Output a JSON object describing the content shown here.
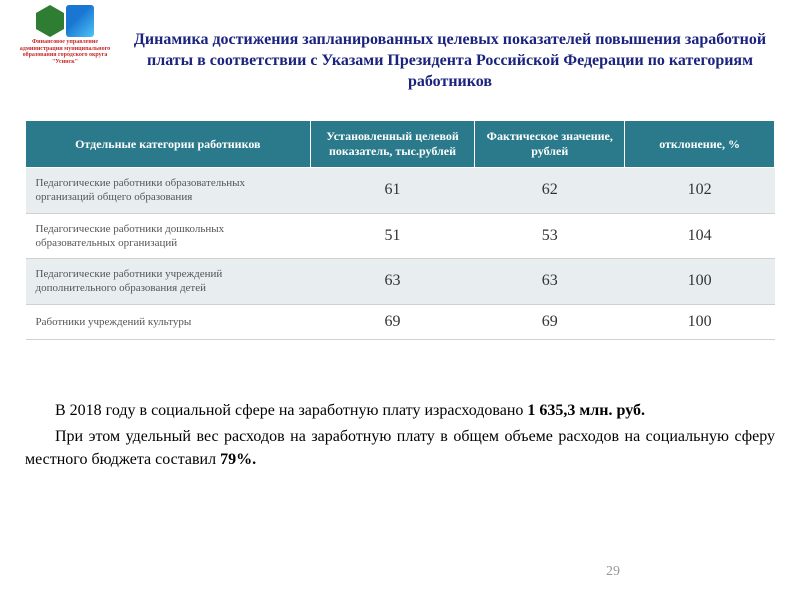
{
  "logo": {
    "caption": "Финансовое управление администрации муниципального образования городского округа \"Усинск\""
  },
  "title": "Динамика достижения запланированных целевых показателей повышения заработной платы в соответствии с Указами Президента Российской Федерации по категориям работников",
  "table": {
    "headers": {
      "col1": "Отдельные категории работников",
      "col2": "Установленный целевой показатель, тыс.рублей",
      "col3": "Фактическое значение, рублей",
      "col4": "отклонение, %"
    },
    "rows": [
      {
        "category": "Педагогические работники образовательных организаций общего образования",
        "target": "61",
        "actual": "62",
        "deviation": "102"
      },
      {
        "category": "Педагогические работники дошкольных образовательных организаций",
        "target": "51",
        "actual": "53",
        "deviation": "104"
      },
      {
        "category": "Педагогические работники учреждений дополнительного образования детей",
        "target": "63",
        "actual": "63",
        "deviation": "100"
      },
      {
        "category": "Работники учреждений культуры",
        "target": "69",
        "actual": "69",
        "deviation": "100"
      }
    ]
  },
  "body": {
    "p1_part1": "В 2018 году в социальной сфере на заработную плату израсходовано ",
    "p1_bold": "1 635,3 млн. руб.",
    "p2_part1": "При этом удельный вес расходов на заработную плату в общем объеме расходов на социальную сферу  местного бюджета составил ",
    "p2_bold": "79%."
  },
  "page_number": "29",
  "colors": {
    "title": "#1a237e",
    "header_bg": "#2b7a8c",
    "header_text": "#ffffff",
    "row_odd_bg": "#e8eef0",
    "row_even_bg": "#ffffff",
    "logo_caption": "#c62828"
  }
}
